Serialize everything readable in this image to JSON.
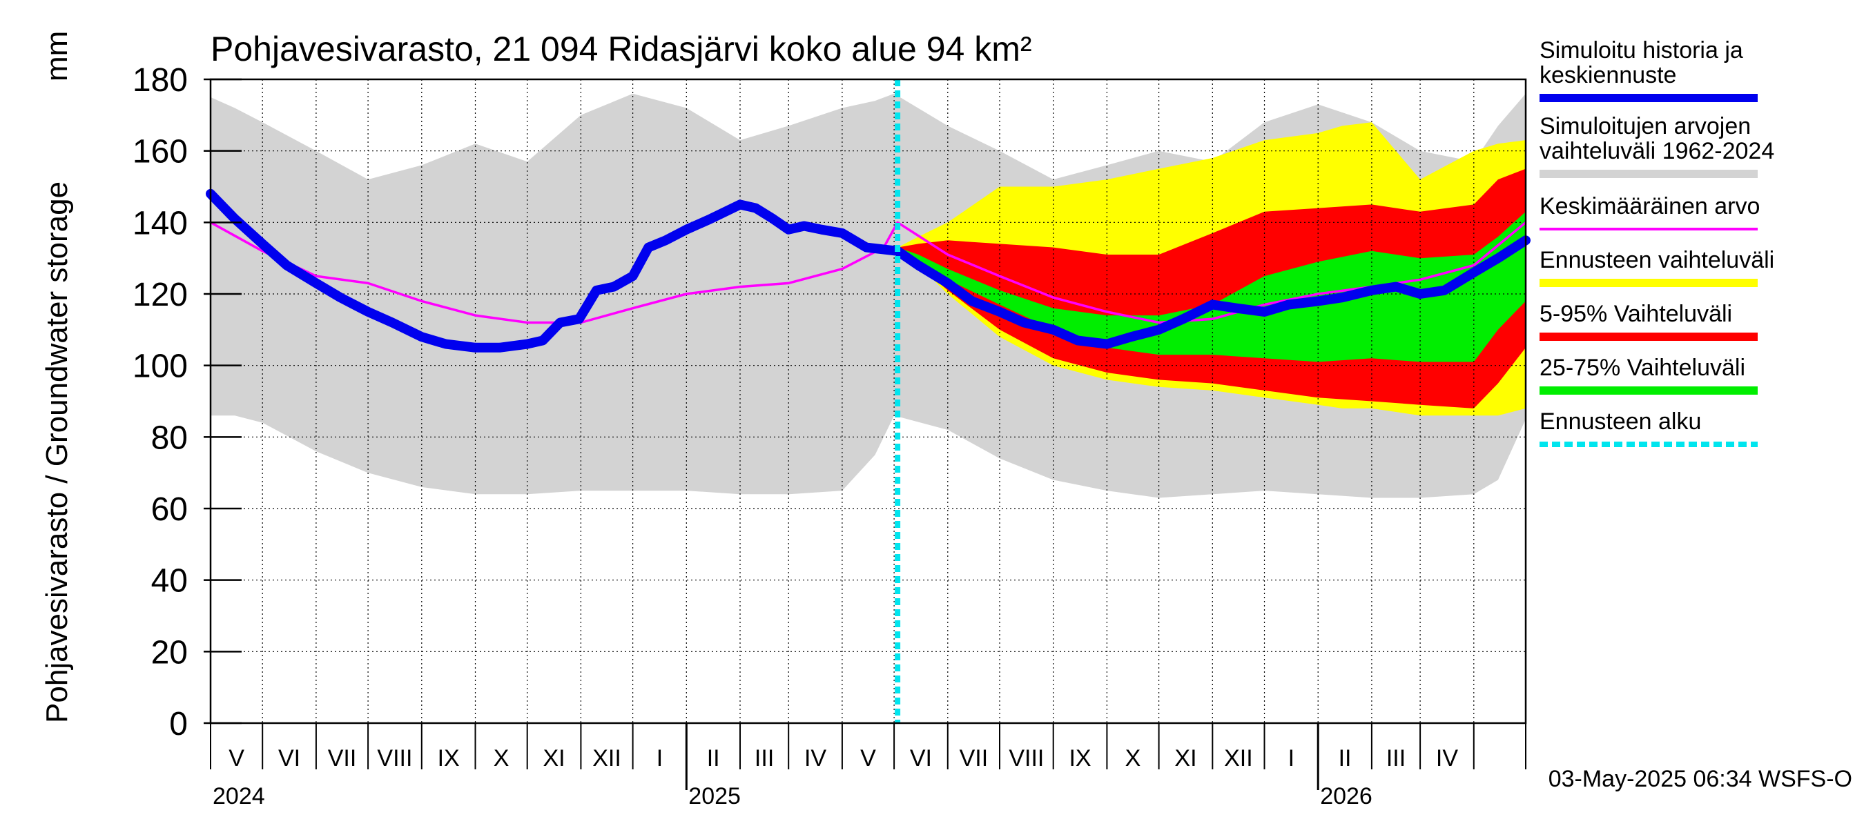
{
  "chart_data": {
    "type": "area",
    "title": "Pohjavesivarasto, 21 094 Ridasjärvi koko alue 94 km²",
    "ylabel": "Pohjavesivarasto / Groundwater storage",
    "yunit": "mm",
    "ylim": [
      0,
      180
    ],
    "yticks": [
      0,
      20,
      40,
      60,
      80,
      100,
      120,
      140,
      160,
      180
    ],
    "xlim": [
      "2024-04-01",
      "2026-05-01"
    ],
    "x_month_labels": [
      "V",
      "VI",
      "VII",
      "VIII",
      "IX",
      "X",
      "XI",
      "XII",
      "I",
      "II",
      "III",
      "IV",
      "V",
      "VI",
      "VII",
      "VIII",
      "IX",
      "X",
      "XI",
      "XII",
      "I",
      "II",
      "III",
      "IV"
    ],
    "x_year_labels": [
      {
        "label": "2024",
        "date": "2024-04-01"
      },
      {
        "label": "2025",
        "date": "2025-01-01"
      },
      {
        "label": "2026",
        "date": "2026-01-01"
      }
    ],
    "grid": true,
    "legend_position": "right",
    "forecast_start": "2025-05-03",
    "timestamp": "03-May-2025 06:34 WSFS-O",
    "colors": {
      "history": "#0000ee",
      "range_hist": "#d3d3d3",
      "mean": "#ff00ff",
      "forecast_range": "#ffff00",
      "p5_95": "#ff0000",
      "p25_75": "#00ee00",
      "forecast_start": "#00e5ee"
    },
    "series": [
      {
        "name": "Simuloitu historia ja keskiennuste",
        "x": [
          "2024-04-01",
          "2024-04-15",
          "2024-05-01",
          "2024-05-15",
          "2024-06-01",
          "2024-06-15",
          "2024-07-01",
          "2024-07-15",
          "2024-08-01",
          "2024-08-15",
          "2024-09-01",
          "2024-09-15",
          "2024-10-01",
          "2024-10-10",
          "2024-10-20",
          "2024-10-31",
          "2024-11-10",
          "2024-11-20",
          "2024-12-01",
          "2024-12-10",
          "2024-12-20",
          "2025-01-01",
          "2025-01-15",
          "2025-02-01",
          "2025-02-10",
          "2025-02-20",
          "2025-03-01",
          "2025-03-10",
          "2025-03-20",
          "2025-04-01",
          "2025-04-15",
          "2025-05-03",
          "2025-05-15",
          "2025-06-01",
          "2025-06-15",
          "2025-07-01",
          "2025-07-15",
          "2025-08-01",
          "2025-08-15",
          "2025-09-01",
          "2025-09-15",
          "2025-10-01",
          "2025-10-15",
          "2025-11-01",
          "2025-11-15",
          "2025-12-01",
          "2025-12-15",
          "2026-01-01",
          "2026-01-15",
          "2026-02-01",
          "2026-02-15",
          "2026-03-01",
          "2026-03-15",
          "2026-04-01",
          "2026-04-15",
          "2026-05-01"
        ],
        "values": [
          148,
          141,
          134,
          128,
          123,
          119,
          115,
          112,
          108,
          106,
          105,
          105,
          106,
          107,
          112,
          113,
          121,
          122,
          125,
          133,
          135,
          138,
          141,
          145,
          144,
          141,
          138,
          139,
          138,
          137,
          133,
          132,
          128,
          123,
          118,
          115,
          112,
          110,
          107,
          106,
          108,
          110,
          113,
          117,
          116,
          115,
          117,
          118,
          119,
          121,
          122,
          120,
          121,
          126,
          130,
          135
        ]
      },
      {
        "name": "Keskimääräinen arvo",
        "x": [
          "2024-04-01",
          "2024-05-01",
          "2024-06-01",
          "2024-07-01",
          "2024-08-01",
          "2024-09-01",
          "2024-10-01",
          "2024-11-01",
          "2024-12-01",
          "2025-01-01",
          "2025-02-01",
          "2025-03-01",
          "2025-04-01",
          "2025-04-25",
          "2025-05-03",
          "2025-06-01",
          "2025-07-01",
          "2025-08-01",
          "2025-09-01",
          "2025-10-01",
          "2025-11-01",
          "2025-12-01",
          "2026-01-01",
          "2026-02-01",
          "2026-03-01",
          "2026-04-01",
          "2026-05-01"
        ],
        "values": [
          140,
          132,
          125,
          123,
          118,
          114,
          112,
          112,
          116,
          120,
          122,
          123,
          127,
          133,
          140,
          131,
          125,
          119,
          115,
          112,
          113,
          117,
          120,
          122,
          124,
          128,
          140
        ]
      }
    ],
    "bands": [
      {
        "name": "Simuloitujen arvojen vaihteluväli 1962-2024",
        "x": [
          "2024-04-01",
          "2024-04-15",
          "2024-05-01",
          "2024-06-01",
          "2024-07-01",
          "2024-08-01",
          "2024-09-01",
          "2024-10-01",
          "2024-11-01",
          "2024-12-01",
          "2025-01-01",
          "2025-02-01",
          "2025-03-01",
          "2025-04-01",
          "2025-04-20",
          "2025-05-01",
          "2025-06-01",
          "2025-07-01",
          "2025-08-01",
          "2025-09-01",
          "2025-10-01",
          "2025-11-01",
          "2025-12-01",
          "2026-01-01",
          "2026-02-01",
          "2026-03-01",
          "2026-04-01",
          "2026-04-15",
          "2026-05-01"
        ],
        "upper": [
          175,
          172,
          168,
          160,
          152,
          156,
          162,
          157,
          170,
          176,
          172,
          163,
          167,
          172,
          174,
          176,
          167,
          160,
          152,
          156,
          160,
          157,
          168,
          173,
          168,
          160,
          157,
          167,
          176
        ],
        "lower": [
          86,
          86,
          84,
          76,
          70,
          66,
          64,
          64,
          65,
          65,
          65,
          64,
          64,
          65,
          75,
          86,
          82,
          74,
          68,
          65,
          63,
          64,
          65,
          64,
          63,
          63,
          64,
          68,
          85
        ]
      },
      {
        "name": "Ennusteen vaihteluväli",
        "x": [
          "2025-05-03",
          "2025-05-15",
          "2025-06-01",
          "2025-07-01",
          "2025-08-01",
          "2025-09-01",
          "2025-10-01",
          "2025-11-01",
          "2025-12-01",
          "2026-01-01",
          "2026-01-15",
          "2026-02-01",
          "2026-03-01",
          "2026-04-01",
          "2026-04-15",
          "2026-05-01"
        ],
        "upper": [
          133,
          136,
          140,
          150,
          150,
          152,
          155,
          158,
          163,
          165,
          167,
          168,
          152,
          160,
          162,
          163
        ],
        "lower": [
          132,
          128,
          120,
          108,
          100,
          96,
          94,
          93,
          91,
          89,
          88,
          88,
          86,
          86,
          86,
          88
        ]
      },
      {
        "name": "5-95% Vaihteluväli",
        "x": [
          "2025-05-03",
          "2025-05-15",
          "2025-06-01",
          "2025-07-01",
          "2025-08-01",
          "2025-09-01",
          "2025-10-01",
          "2025-11-01",
          "2025-12-01",
          "2026-01-01",
          "2026-02-01",
          "2026-03-01",
          "2026-04-01",
          "2026-04-15",
          "2026-05-01"
        ],
        "upper": [
          133,
          134,
          135,
          134,
          133,
          131,
          131,
          137,
          143,
          144,
          145,
          143,
          145,
          152,
          155
        ],
        "lower": [
          132,
          128,
          121,
          110,
          102,
          98,
          96,
          95,
          93,
          91,
          90,
          89,
          88,
          95,
          105
        ]
      },
      {
        "name": "25-75% Vaihteluväli",
        "x": [
          "2025-05-03",
          "2025-05-15",
          "2025-06-01",
          "2025-07-01",
          "2025-08-01",
          "2025-09-01",
          "2025-10-01",
          "2025-11-01",
          "2025-12-01",
          "2026-01-01",
          "2026-02-01",
          "2026-03-01",
          "2026-04-01",
          "2026-04-15",
          "2026-05-01"
        ],
        "upper": [
          133,
          131,
          127,
          121,
          116,
          114,
          114,
          117,
          125,
          129,
          132,
          130,
          131,
          136,
          143
        ],
        "lower": [
          132,
          129,
          124,
          117,
          110,
          105,
          103,
          103,
          102,
          101,
          102,
          101,
          101,
          110,
          118
        ]
      }
    ],
    "legend": [
      {
        "label": "Simuloitu historia ja keskiennuste",
        "color": "#0000ee",
        "style": "thick"
      },
      {
        "label": "Simuloitujen arvojen vaihteluväli 1962-2024",
        "color": "#d3d3d3",
        "style": "thick"
      },
      {
        "label": "Keskimääräinen arvo",
        "color": "#ff00ff",
        "style": "thin"
      },
      {
        "label": "Ennusteen vaihteluväli",
        "color": "#ffff00",
        "style": "thick"
      },
      {
        "label": "5-95% Vaihteluväli",
        "color": "#ff0000",
        "style": "thick"
      },
      {
        "label": "25-75% Vaihteluväli",
        "color": "#00ee00",
        "style": "thick"
      },
      {
        "label": "Ennusteen alku",
        "color": "#00e5ee",
        "style": "dashed"
      }
    ]
  }
}
